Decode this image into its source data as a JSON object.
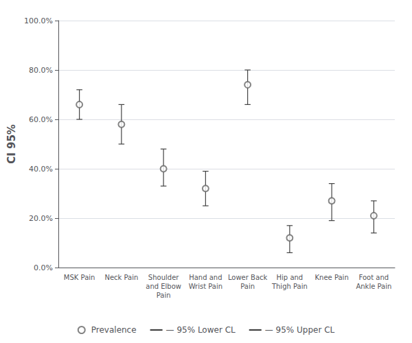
{
  "chart_data": {
    "type": "errorbar",
    "ylabel": "CI 95%",
    "categories": [
      "MSK Pain",
      "Neck Pain",
      "Shoulder\nand Elbow\nPain",
      "Hand and\nWrist Pain",
      "Lower Back\nPain",
      "Hip and\nThigh Pain",
      "Knee Pain",
      "Foot and\nAnkle Pain"
    ],
    "series": [
      {
        "name": "Prevalence",
        "type": "scatter",
        "marker": "circle",
        "color": "#666666",
        "values": [
          0.66,
          0.58,
          0.4,
          0.32,
          0.74,
          0.12,
          0.27,
          0.21
        ]
      },
      {
        "name": "— 95% Lower CL",
        "type": "errorbar",
        "color": "#444444",
        "values": [
          0.6,
          0.5,
          0.33,
          0.25,
          0.66,
          0.06,
          0.19,
          0.14
        ]
      },
      {
        "name": "— 95% Upper CL",
        "type": "errorbar",
        "color": "#444444",
        "values": [
          0.72,
          0.66,
          0.48,
          0.39,
          0.8,
          0.17,
          0.34,
          0.27
        ]
      }
    ],
    "ylim": [
      0.0,
      1.0
    ],
    "yticks": [
      {
        "value": 0.0,
        "label": "0.0%"
      },
      {
        "value": 0.2,
        "label": "20.0%"
      },
      {
        "value": 0.4,
        "label": "40.0%"
      },
      {
        "value": 0.6,
        "label": "60.0%"
      },
      {
        "value": 0.8,
        "label": "80.0%"
      },
      {
        "value": 1.0,
        "label": "100.0%"
      }
    ],
    "grid": true,
    "legend": "bottom"
  }
}
